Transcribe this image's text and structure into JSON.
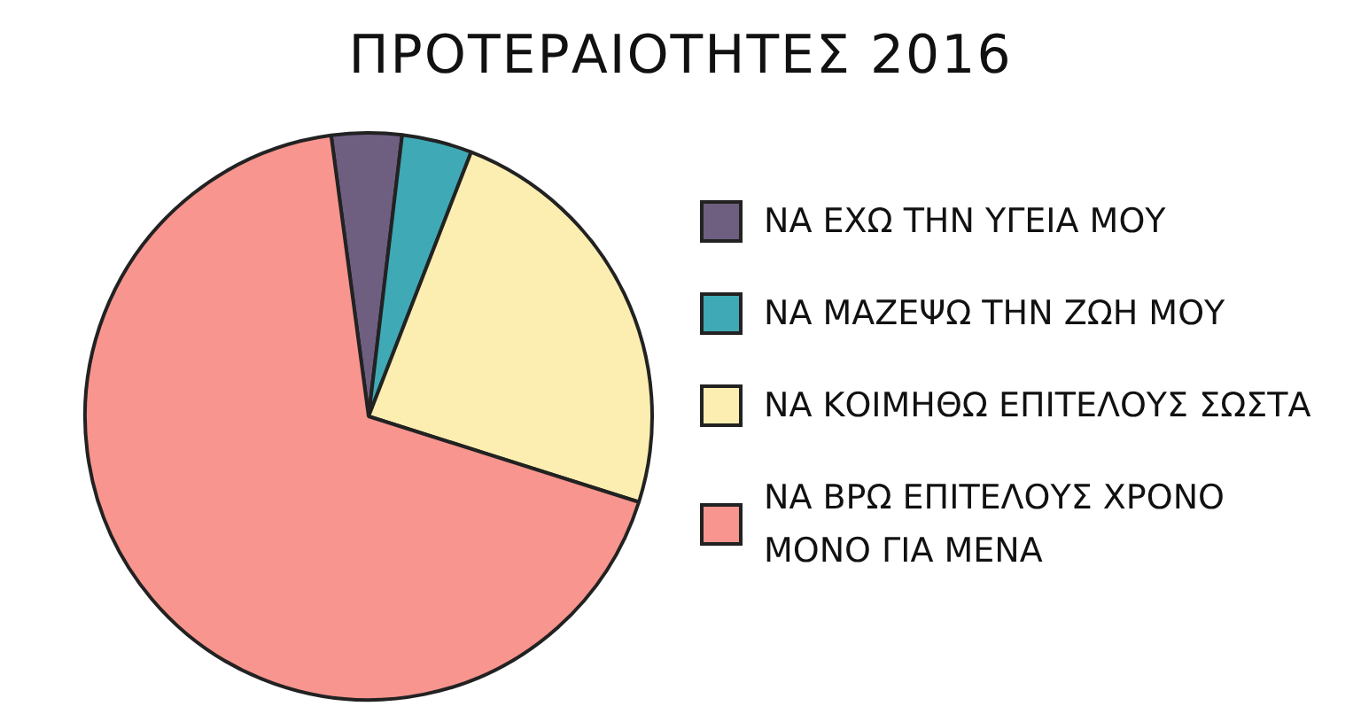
{
  "chart_data": {
    "type": "pie",
    "title": "ΠΡΟΤΕΡΑΙΟΤΗΤΕΣ 2016",
    "categories": [
      "ΝΑ ΕΧΩ ΤΗΝ ΥΓΕΙΑ ΜΟΥ",
      "ΝΑ ΜΑΖΕΨΩ ΤΗΝ ΖΩΗ ΜΟΥ",
      "ΝΑ ΚΟΙΜΗΘΩ ΕΠΙΤΕΛΟΥΣ ΣΩΣΤΑ",
      "ΝΑ ΒΡΩ ΕΠΙΤΕΛΟΥΣ ΧΡΟΝΟ ΜΟΝΟ ΓΙΑ ΜΕΝΑ"
    ],
    "values": [
      4,
      4,
      24,
      68
    ],
    "colors": [
      "#6e5f80",
      "#3fa9b5",
      "#fbeeb0",
      "#f7958e"
    ],
    "legend": "right"
  }
}
